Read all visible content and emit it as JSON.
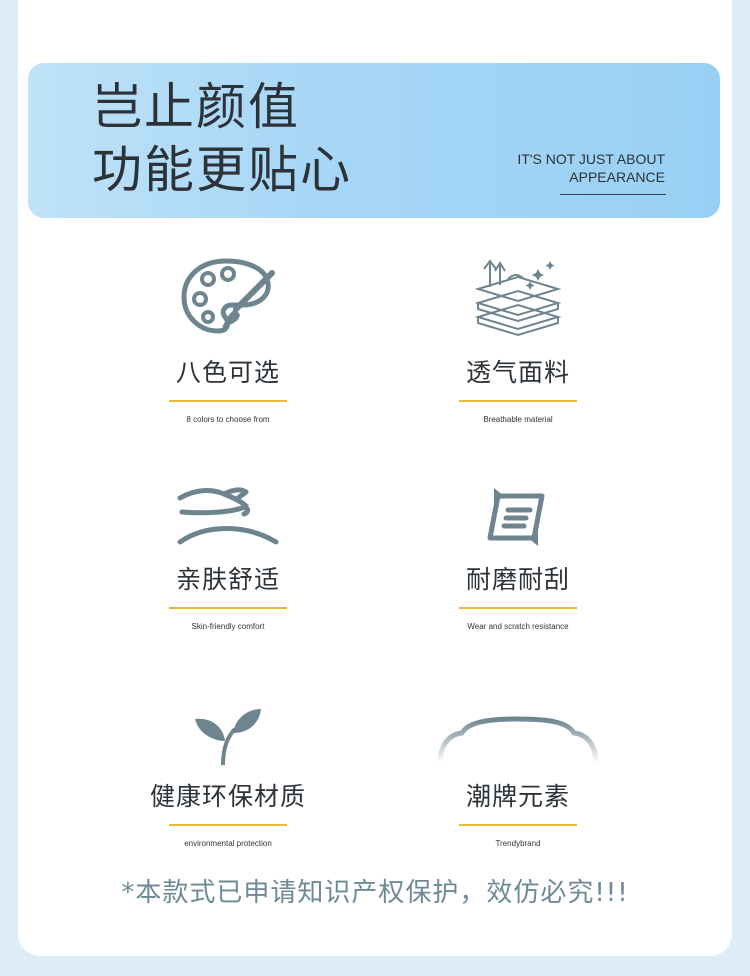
{
  "header": {
    "title_line1": "岂止颜值",
    "title_line2": "功能更贴心",
    "subtitle_line1": "IT'S NOT JUST ABOUT",
    "subtitle_line2": "APPEARANCE"
  },
  "features": [
    {
      "icon": "palette-icon",
      "label": "八色可选",
      "en": "8 colors to choose from"
    },
    {
      "icon": "breathable-fabric-icon",
      "label": "透气面料",
      "en": "Breathable material"
    },
    {
      "icon": "hand-touch-icon",
      "label": "亲肤舒适",
      "en": "Skin-friendly comfort"
    },
    {
      "icon": "wear-resistant-icon",
      "label": "耐磨耐刮",
      "en": "Wear and scratch resistance"
    },
    {
      "icon": "leaf-sprout-icon",
      "label": "健康环保材质",
      "en": "environmental protection"
    },
    {
      "icon": "brand-shape-icon",
      "label": "潮牌元素",
      "en": "Trendybrand"
    }
  ],
  "notice": "*本款式已申请知识产权保护，效仿必究!!!",
  "colors": {
    "accent": "#eab93a",
    "icon": "#6e8590",
    "banner": "#a8d7f6",
    "text": "#2c3338"
  }
}
